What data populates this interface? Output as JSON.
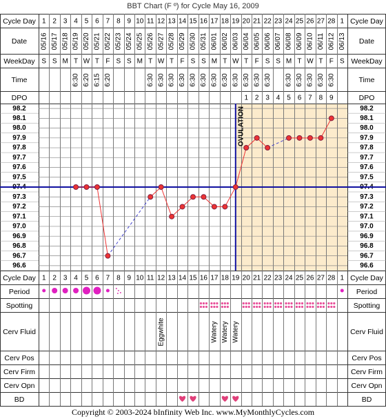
{
  "title": "BBT Chart (F º) for Cycle May 16, 2009",
  "footer": "Copyright © 2003-2024 bInfinity Web Inc.     www.MyMonthlyCycles.com",
  "row_labels": {
    "cycle_day": "Cycle Day",
    "date": "Date",
    "weekday": "WeekDay",
    "time": "Time",
    "dpo": "DPO",
    "period": "Period",
    "spotting": "Spotting",
    "cerv_fluid": "Cerv Fluid",
    "cerv_pos": "Cerv Pos",
    "cerv_firm": "Cerv Firm",
    "cerv_opn": "Cerv Opn",
    "bd": "BD"
  },
  "chart_data": {
    "type": "line",
    "cycle_days": [
      1,
      2,
      3,
      4,
      5,
      6,
      7,
      8,
      9,
      10,
      11,
      12,
      13,
      14,
      15,
      16,
      17,
      18,
      19,
      20,
      21,
      22,
      23,
      24,
      25,
      26,
      27,
      28,
      1
    ],
    "dates": [
      "05/16",
      "05/17",
      "05/18",
      "05/19",
      "05/20",
      "05/21",
      "05/22",
      "05/23",
      "05/24",
      "05/25",
      "05/26",
      "05/27",
      "05/28",
      "05/29",
      "05/30",
      "05/31",
      "06/01",
      "06/02",
      "06/03",
      "06/04",
      "06/05",
      "06/06",
      "06/07",
      "06/08",
      "06/09",
      "06/10",
      "06/11",
      "06/12",
      "06/13"
    ],
    "weekdays": [
      "S",
      "S",
      "M",
      "T",
      "W",
      "T",
      "F",
      "S",
      "S",
      "M",
      "T",
      "W",
      "T",
      "F",
      "S",
      "S",
      "M",
      "T",
      "W",
      "T",
      "F",
      "S",
      "S",
      "M",
      "T",
      "W",
      "T",
      "F",
      "S"
    ],
    "times": [
      null,
      null,
      null,
      "6:30",
      "6:20",
      "6:15",
      "6:20",
      null,
      null,
      null,
      "6:30",
      "6:30",
      "6:30",
      "6:30",
      "6:30",
      "6:30",
      "6:30",
      "6:30",
      "6:30",
      "6:30",
      "6:30",
      "6:30",
      null,
      "6:30",
      "6:30",
      "6:30",
      "6:30",
      "6:30",
      null
    ],
    "dpo": [
      null,
      null,
      null,
      null,
      null,
      null,
      null,
      null,
      null,
      null,
      null,
      null,
      null,
      null,
      null,
      null,
      null,
      null,
      null,
      1,
      2,
      3,
      4,
      5,
      6,
      7,
      8,
      9,
      null
    ],
    "values": [
      null,
      null,
      null,
      97.4,
      97.4,
      97.4,
      96.7,
      null,
      null,
      null,
      97.3,
      97.4,
      97.1,
      97.2,
      97.3,
      97.3,
      97.2,
      97.2,
      97.4,
      97.8,
      97.9,
      97.8,
      null,
      97.9,
      97.9,
      97.9,
      97.9,
      98.1,
      null
    ],
    "color": "#ee3333",
    "ylim": [
      96.55,
      98.25
    ],
    "yticks": [
      98.2,
      98.1,
      {
        "value": 98.0,
        "label": "98.0"
      },
      97.9,
      97.8,
      97.7,
      97.6,
      97.5,
      97.4,
      97.3,
      97.2,
      97.1,
      {
        "value": 97.0,
        "label": "97.0"
      },
      96.9,
      96.8,
      96.7,
      96.6
    ],
    "grid": true,
    "coverline": 97.4,
    "ovulation": {
      "label": "OVULATION",
      "cycle_day": 19
    },
    "period": [
      "light",
      "medium",
      "medium",
      "medium",
      "heavy",
      "heavy",
      "light",
      "spotting",
      null,
      null,
      null,
      null,
      null,
      null,
      null,
      null,
      null,
      null,
      null,
      null,
      null,
      null,
      null,
      null,
      null,
      null,
      null,
      null,
      "light"
    ],
    "spotting": [
      null,
      null,
      null,
      null,
      null,
      null,
      null,
      null,
      null,
      null,
      null,
      null,
      null,
      null,
      null,
      true,
      true,
      true,
      null,
      true,
      true,
      true,
      true,
      true,
      true,
      true,
      true,
      true,
      null
    ],
    "cerv_fluid": [
      null,
      null,
      null,
      null,
      null,
      null,
      null,
      null,
      null,
      null,
      null,
      "Eggwhite",
      null,
      null,
      null,
      null,
      "Watery",
      "Watery",
      "Watery",
      null,
      null,
      null,
      null,
      null,
      null,
      null,
      null,
      null,
      null
    ],
    "bd": [
      null,
      null,
      null,
      null,
      null,
      null,
      null,
      null,
      null,
      null,
      null,
      null,
      null,
      true,
      true,
      null,
      null,
      true,
      true,
      null,
      null,
      null,
      null,
      null,
      null,
      null,
      null,
      null,
      null
    ]
  }
}
